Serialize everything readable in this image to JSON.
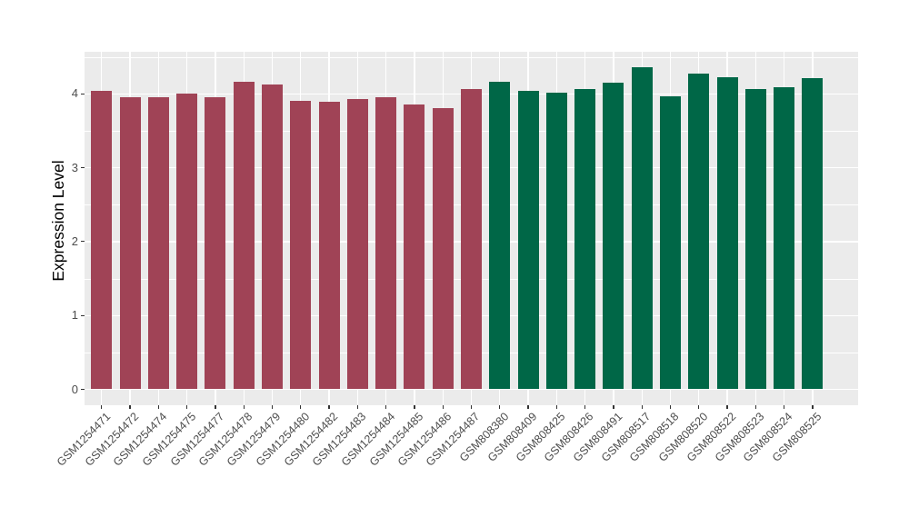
{
  "chart_data": {
    "type": "bar",
    "title": "",
    "xlabel": "",
    "ylabel": "Expression Level",
    "categories": [
      "GSM1254471",
      "GSM1254472",
      "GSM1254474",
      "GSM1254475",
      "GSM1254477",
      "GSM1254478",
      "GSM1254479",
      "GSM1254480",
      "GSM1254482",
      "GSM1254483",
      "GSM1254484",
      "GSM1254485",
      "GSM1254486",
      "GSM1254487",
      "GSM808380",
      "GSM808409",
      "GSM808425",
      "GSM808426",
      "GSM808491",
      "GSM808517",
      "GSM808518",
      "GSM808520",
      "GSM808522",
      "GSM808523",
      "GSM808524",
      "GSM808525"
    ],
    "values": [
      4.04,
      3.96,
      3.96,
      4.0,
      3.96,
      4.16,
      4.13,
      3.91,
      3.89,
      3.93,
      3.96,
      3.86,
      3.81,
      4.07,
      4.16,
      4.04,
      4.01,
      4.06,
      4.15,
      4.36,
      3.97,
      4.27,
      4.23,
      4.06,
      4.09,
      4.21
    ],
    "bar_groups": [
      "A",
      "A",
      "A",
      "A",
      "A",
      "A",
      "A",
      "A",
      "A",
      "A",
      "A",
      "A",
      "A",
      "A",
      "B",
      "B",
      "B",
      "B",
      "B",
      "B",
      "B",
      "B",
      "B",
      "B",
      "B",
      "B"
    ],
    "group_colors": {
      "A": "#A04356",
      "B": "#006747"
    },
    "yticks": [
      0,
      1,
      2,
      3,
      4
    ],
    "yticks_minor": [
      0.5,
      1.5,
      2.5,
      3.5,
      4.5
    ],
    "ylim": [
      -0.22,
      4.57
    ],
    "grid": "white major+minor horizontal, white vertical at category centers",
    "legend": "none",
    "panel_bg": "#EBEBEB"
  },
  "colors": {
    "panel_background": "#EBEBEB",
    "gridline": "#FFFFFF",
    "axis_text": "#4D4D4D",
    "axis_title": "#000000",
    "tick_mark": "#333333",
    "bar_red": "#A04356",
    "bar_green": "#006747"
  }
}
